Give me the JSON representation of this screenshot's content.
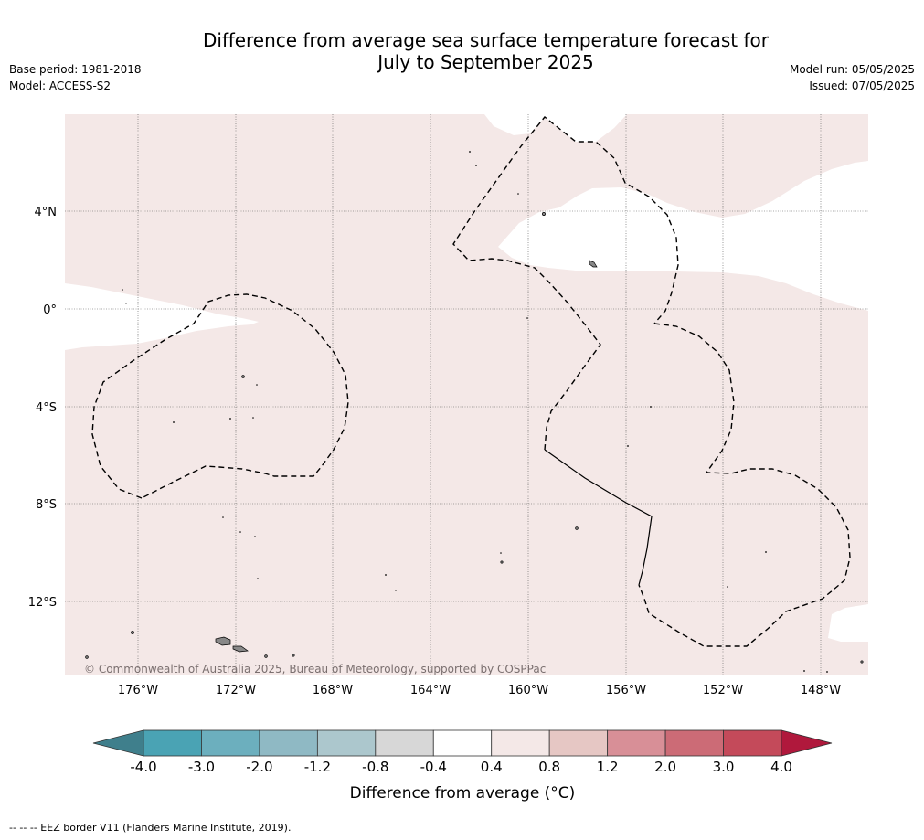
{
  "title": {
    "line1": "Difference from average sea surface temperature forecast for",
    "line2": "July to September 2025"
  },
  "meta_left": {
    "base_period": "Base period: 1981-2018",
    "model": "Model: ACCESS-S2"
  },
  "meta_right": {
    "model_run": "Model run: 05/05/2025",
    "issued": "Issued: 07/05/2025"
  },
  "map": {
    "longitude_labels": [
      "176°W",
      "172°W",
      "168°W",
      "164°W",
      "160°W",
      "156°W",
      "152°W",
      "148°W"
    ],
    "latitude_labels": [
      "4°N",
      "0°",
      "4°S",
      "8°S",
      "12°S"
    ],
    "copyright": "© Commonwealth of Australia 2025, Bureau of Meteorology, supported by COSPPac",
    "dominant_category": "0.4 to 0.8",
    "colors": {
      "warm_0_4_0_8": "#f4e8e7",
      "neutral": "#ffffff",
      "land": "#888888",
      "eez_border": "#000000"
    }
  },
  "colorbar": {
    "tick_labels": [
      "-4.0",
      "-3.0",
      "-2.0",
      "-1.2",
      "-0.8",
      "-0.4",
      "0.4",
      "0.8",
      "1.2",
      "2.0",
      "3.0",
      "4.0"
    ],
    "colors": [
      "#3f7f8c",
      "#4aa3b4",
      "#6cafbe",
      "#8fb9c4",
      "#acc7cd",
      "#d7d7d7",
      "#ffffff",
      "#f4e8e7",
      "#e6c7c4",
      "#d88f97",
      "#cc6b76",
      "#c44a5a",
      "#b0183c"
    ],
    "label": "Difference from average (°C)"
  },
  "footer": "-- -- -- EEZ border V11 (Flanders Marine Institute, 2019)."
}
